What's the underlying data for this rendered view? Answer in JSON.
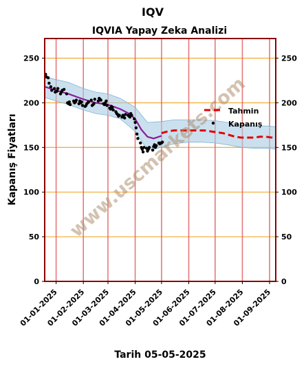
{
  "chart_data": {
    "type": "line",
    "title": "IQV",
    "subtitle": "IQVIA Yapay Zeka Analizi",
    "xlabel": "Tarih 05-05-2025",
    "ylabel": "Kapanış Fiyatları",
    "ylim": [
      0,
      272
    ],
    "xlim": [
      "2024-12-19",
      "2025-09-08"
    ],
    "yticks": [
      0,
      50,
      100,
      150,
      200,
      250
    ],
    "xtick_labels": [
      "01-01-2025",
      "01-02-2025",
      "01-03-2025",
      "01-04-2025",
      "01-05-2025",
      "01-06-2025",
      "01-07-2025",
      "01-08-2025",
      "01-09-2025"
    ],
    "watermark": "www.uscmarkets.com",
    "legend": {
      "position": "right",
      "entries": [
        "Tahmin",
        "Kapanış"
      ]
    },
    "colors": {
      "frame": "#8b0000",
      "gridline_h": "#f5b041",
      "gridline_v": "#e06060",
      "band": "#a9cce3",
      "smooth": "#8b1a9b",
      "forecast": "#e00000",
      "points": "#000000",
      "watermark": "#c0a090"
    },
    "series": [
      {
        "name": "Tahmin",
        "style": "dashed",
        "x": [
          "2025-05-01",
          "2025-05-08",
          "2025-05-15",
          "2025-05-22",
          "2025-05-29",
          "2025-06-05",
          "2025-06-12",
          "2025-06-19",
          "2025-06-26",
          "2025-07-03",
          "2025-07-10",
          "2025-07-17",
          "2025-07-24",
          "2025-07-31",
          "2025-08-07",
          "2025-08-14",
          "2025-08-21",
          "2025-08-28",
          "2025-09-04",
          "2025-09-08"
        ],
        "y": [
          166,
          168,
          169,
          169,
          169,
          169,
          169,
          169,
          168,
          167,
          166,
          164,
          162,
          161,
          161,
          161,
          162,
          162,
          161,
          160
        ]
      },
      {
        "name": "Kapanış",
        "style": "points",
        "x": [
          "2024-12-20",
          "2024-12-21",
          "2024-12-23",
          "2024-12-24",
          "2024-12-26",
          "2024-12-27",
          "2024-12-30",
          "2024-12-31",
          "2025-01-02",
          "2025-01-03",
          "2025-01-06",
          "2025-01-07",
          "2025-01-08",
          "2025-01-10",
          "2025-01-13",
          "2025-01-14",
          "2025-01-15",
          "2025-01-16",
          "2025-01-17",
          "2025-01-21",
          "2025-01-22",
          "2025-01-23",
          "2025-01-24",
          "2025-01-27",
          "2025-01-28",
          "2025-01-29",
          "2025-01-30",
          "2025-01-31",
          "2025-02-03",
          "2025-02-04",
          "2025-02-05",
          "2025-02-06",
          "2025-02-07",
          "2025-02-10",
          "2025-02-11",
          "2025-02-12",
          "2025-02-13",
          "2025-02-14",
          "2025-02-18",
          "2025-02-19",
          "2025-02-20",
          "2025-02-21",
          "2025-02-24",
          "2025-02-25",
          "2025-02-26",
          "2025-02-27",
          "2025-02-28",
          "2025-03-03",
          "2025-03-04",
          "2025-03-05",
          "2025-03-06",
          "2025-03-07",
          "2025-03-10",
          "2025-03-11",
          "2025-03-12",
          "2025-03-13",
          "2025-03-14",
          "2025-03-17",
          "2025-03-18",
          "2025-03-19",
          "2025-03-20",
          "2025-03-21",
          "2025-03-24",
          "2025-03-25",
          "2025-03-26",
          "2025-03-27",
          "2025-03-28",
          "2025-03-31",
          "2025-04-01",
          "2025-04-02",
          "2025-04-03",
          "2025-04-04",
          "2025-04-07",
          "2025-04-08",
          "2025-04-09",
          "2025-04-10",
          "2025-04-11",
          "2025-04-14",
          "2025-04-15",
          "2025-04-16",
          "2025-04-17",
          "2025-04-21",
          "2025-04-22",
          "2025-04-23",
          "2025-04-24",
          "2025-04-25",
          "2025-04-28",
          "2025-04-29",
          "2025-04-30",
          "2025-05-01",
          "2025-05-02"
        ],
        "y": [
          232,
          229,
          228,
          222,
          218,
          214,
          216,
          212,
          213,
          216,
          210,
          212,
          214,
          215,
          210,
          200,
          199,
          201,
          198,
          202,
          200,
          201,
          203,
          199,
          202,
          200,
          201,
          197,
          196,
          197,
          199,
          200,
          201,
          203,
          197,
          198,
          199,
          204,
          202,
          205,
          204,
          203,
          199,
          198,
          200,
          202,
          197,
          194,
          193,
          196,
          195,
          192,
          190,
          188,
          187,
          185,
          186,
          184,
          186,
          184,
          183,
          187,
          186,
          185,
          184,
          188,
          186,
          182,
          178,
          172,
          165,
          160,
          155,
          150,
          148,
          145,
          150,
          149,
          146,
          148,
          150,
          147,
          151,
          153,
          150,
          152,
          155,
          154,
          155,
          155,
          156
        ]
      },
      {
        "name": "smooth",
        "style": "line",
        "x": [
          "2024-12-19",
          "2025-01-01",
          "2025-01-15",
          "2025-02-01",
          "2025-02-15",
          "2025-03-01",
          "2025-03-15",
          "2025-03-25",
          "2025-04-01",
          "2025-04-08",
          "2025-04-15",
          "2025-04-22",
          "2025-05-01"
        ],
        "y": [
          218,
          214,
          210,
          204,
          200,
          198,
          193,
          188,
          182,
          170,
          162,
          160,
          163
        ]
      },
      {
        "name": "band",
        "style": "area",
        "x": [
          "2024-12-19",
          "2025-01-01",
          "2025-01-15",
          "2025-02-01",
          "2025-02-15",
          "2025-03-01",
          "2025-03-15",
          "2025-04-01",
          "2025-04-15",
          "2025-05-01",
          "2025-05-15",
          "2025-06-01",
          "2025-06-15",
          "2025-07-01",
          "2025-07-15",
          "2025-08-01",
          "2025-08-15",
          "2025-09-01",
          "2025-09-08"
        ],
        "upper": [
          229,
          226,
          223,
          216,
          212,
          210,
          205,
          195,
          178,
          179,
          181,
          181,
          181,
          180,
          178,
          175,
          174,
          174,
          173
        ],
        "lower": [
          206,
          202,
          198,
          192,
          188,
          186,
          182,
          168,
          147,
          150,
          154,
          156,
          156,
          155,
          153,
          150,
          149,
          149,
          148
        ]
      }
    ]
  }
}
